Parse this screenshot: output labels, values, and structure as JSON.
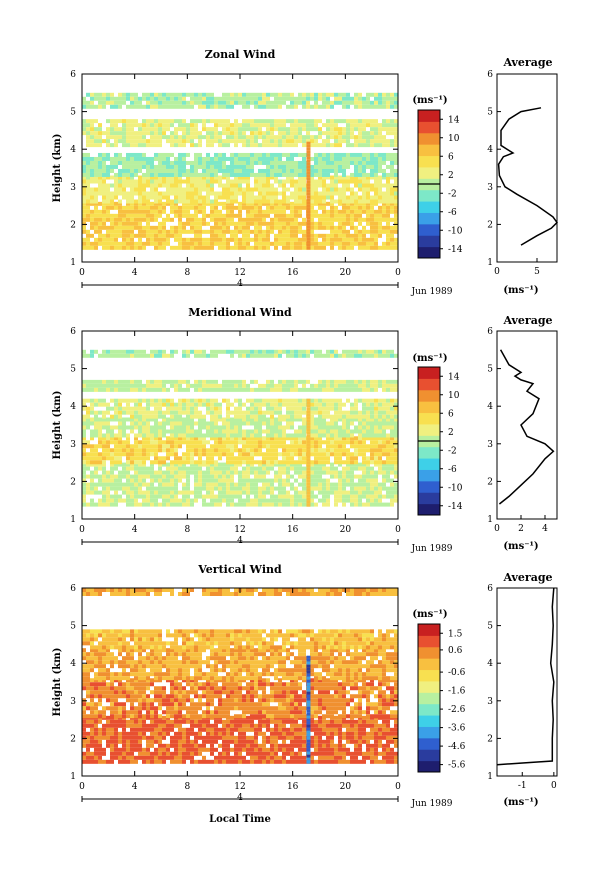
{
  "colors": {
    "colormap": [
      "#1e1e6e",
      "#2a3c9e",
      "#2f5fcf",
      "#3aa0e8",
      "#3ed0e8",
      "#7de8c8",
      "#b8f0a0",
      "#f0f080",
      "#f8e050",
      "#f8c040",
      "#f09030",
      "#e85030",
      "#c82020"
    ]
  },
  "chart_data": [
    {
      "type": "heatmap",
      "title": "Zonal Wind",
      "xlabel": "",
      "ylabel": "Height (km)",
      "xlim": [
        0,
        24
      ],
      "ylim": [
        1,
        6
      ],
      "xticks": [
        "0",
        "4",
        "8",
        "12",
        "16",
        "20",
        "0"
      ],
      "yticks": [
        "1",
        "2",
        "3",
        "4",
        "5",
        "6"
      ],
      "day_label": "4",
      "date_label": "Jun 1989",
      "colorbar": {
        "unit": "(ms⁻¹)",
        "range": [
          -16,
          16
        ],
        "ticks": [
          "14",
          "10",
          "6",
          "2",
          "-2",
          "-6",
          "-10",
          "-14"
        ],
        "tick_values": [
          14,
          10,
          6,
          2,
          -2,
          -6,
          -10,
          -14
        ],
        "zero_line": 0
      },
      "layers": [
        {
          "height_range": [
            1.4,
            2.6
          ],
          "value": 6
        },
        {
          "height_range": [
            2.6,
            3.3
          ],
          "value": 3
        },
        {
          "height_range": [
            3.3,
            3.9
          ],
          "value": -1
        },
        {
          "height_range": [
            4.1,
            4.8
          ],
          "value": 2
        },
        {
          "height_range": [
            5.1,
            5.5
          ],
          "value": 0
        }
      ],
      "average_profile": {
        "title": "Average",
        "xlabel": "(ms⁻¹)",
        "xlim": [
          0,
          7.5
        ],
        "xticks": [
          "0",
          "5"
        ],
        "ylim": [
          1,
          6
        ],
        "yticks": [
          "1",
          "2",
          "3",
          "4",
          "5",
          "6"
        ],
        "x": [
          3.0,
          5.0,
          6.8,
          7.5,
          7.0,
          5.0,
          2.5,
          1.0,
          0.3,
          0.2,
          0.8,
          2.0,
          0.5,
          0.5,
          1.5,
          3.0,
          5.5
        ],
        "y": [
          1.45,
          1.7,
          1.9,
          2.05,
          2.2,
          2.5,
          2.8,
          3.0,
          3.3,
          3.6,
          3.8,
          3.9,
          4.1,
          4.5,
          4.8,
          5.0,
          5.1
        ]
      }
    },
    {
      "type": "heatmap",
      "title": "Meridional Wind",
      "xlabel": "",
      "ylabel": "Height (km)",
      "xlim": [
        0,
        24
      ],
      "ylim": [
        1,
        6
      ],
      "xticks": [
        "0",
        "4",
        "8",
        "12",
        "16",
        "20",
        "0"
      ],
      "yticks": [
        "1",
        "2",
        "3",
        "4",
        "5",
        "6"
      ],
      "day_label": "4",
      "date_label": "Jun 1989",
      "colorbar": {
        "unit": "(ms⁻¹)",
        "range": [
          -16,
          16
        ],
        "ticks": [
          "14",
          "10",
          "6",
          "2",
          "-2",
          "-6",
          "-10",
          "-14"
        ],
        "tick_values": [
          14,
          10,
          6,
          2,
          -2,
          -6,
          -10,
          -14
        ],
        "zero_line": 0
      },
      "layers": [
        {
          "height_range": [
            1.4,
            2.5
          ],
          "value": 1
        },
        {
          "height_range": [
            2.5,
            3.2
          ],
          "value": 5
        },
        {
          "height_range": [
            3.2,
            3.7
          ],
          "value": 1
        },
        {
          "height_range": [
            3.7,
            4.2
          ],
          "value": 2
        },
        {
          "height_range": [
            4.4,
            4.7
          ],
          "value": 1
        },
        {
          "height_range": [
            5.3,
            5.5
          ],
          "value": 0
        }
      ],
      "average_profile": {
        "title": "Average",
        "xlabel": "(ms⁻¹)",
        "xlim": [
          0,
          5
        ],
        "xticks": [
          "0",
          "2",
          "4"
        ],
        "ylim": [
          1,
          6
        ],
        "yticks": [
          "1",
          "2",
          "3",
          "4",
          "5",
          "6"
        ],
        "x": [
          0.2,
          1.0,
          2.0,
          3.0,
          4.0,
          4.7,
          4.0,
          2.5,
          2.0,
          3.0,
          3.5,
          2.5,
          3.0,
          2.0,
          1.5,
          2.0,
          1.0,
          0.3
        ],
        "y": [
          1.4,
          1.6,
          1.9,
          2.2,
          2.6,
          2.8,
          3.0,
          3.2,
          3.5,
          3.8,
          4.2,
          4.4,
          4.6,
          4.7,
          4.8,
          4.9,
          5.1,
          5.5
        ]
      }
    },
    {
      "type": "heatmap",
      "title": "Vertical Wind",
      "xlabel": "Local Time",
      "ylabel": "Height (km)",
      "xlim": [
        0,
        24
      ],
      "ylim": [
        1,
        6
      ],
      "xticks": [
        "0",
        "4",
        "8",
        "12",
        "16",
        "20",
        "0"
      ],
      "yticks": [
        "1",
        "2",
        "3",
        "4",
        "5",
        "6"
      ],
      "day_label": "4",
      "date_label": "Jun 1989",
      "colorbar": {
        "unit": "(ms⁻¹)",
        "range": [
          -6.0,
          2.0
        ],
        "ticks": [
          "1.5",
          "0.6",
          "-0.6",
          "-1.6",
          "-2.6",
          "-3.6",
          "-4.6",
          "-5.6"
        ],
        "tick_values": [
          1.5,
          0.6,
          -0.6,
          -1.6,
          -2.6,
          -3.6,
          -4.6,
          -5.6
        ]
      },
      "layers": [
        {
          "height_range": [
            1.4,
            2.6
          ],
          "value": 0.9
        },
        {
          "height_range": [
            2.6,
            3.6
          ],
          "value": 0.5
        },
        {
          "height_range": [
            3.6,
            4.4
          ],
          "value": 0.1
        },
        {
          "height_range": [
            4.4,
            4.9
          ],
          "value": -0.2
        },
        {
          "height_range": [
            5.8,
            6.0
          ],
          "value": 0.1
        }
      ],
      "average_profile": {
        "title": "Average",
        "xlabel": "(ms⁻¹)",
        "xlim": [
          -1.8,
          0.1
        ],
        "xticks": [
          "-1",
          "0"
        ],
        "ylim": [
          1,
          6
        ],
        "yticks": [
          "1",
          "2",
          "3",
          "4",
          "5",
          "6"
        ],
        "x": [
          -1.8,
          -0.05,
          -0.05,
          -0.02,
          -0.05,
          0.0,
          -0.1,
          -0.05,
          -0.02,
          -0.05,
          0.0
        ],
        "y": [
          1.3,
          1.4,
          2.0,
          2.5,
          3.0,
          3.5,
          4.0,
          4.5,
          5.0,
          5.5,
          6.0
        ]
      }
    }
  ]
}
